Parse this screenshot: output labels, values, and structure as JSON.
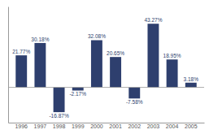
{
  "chart_data": {
    "type": "bar",
    "categories": [
      "1996",
      "1997",
      "1998",
      "1999",
      "2000",
      "2001",
      "2002",
      "2003",
      "2004",
      "2005"
    ],
    "values": [
      21.77,
      30.18,
      -16.87,
      -2.17,
      32.08,
      20.65,
      -7.58,
      43.27,
      18.95,
      3.18
    ],
    "value_labels": [
      "21.77%",
      "30.18%",
      "-16.87%",
      "-2.17%",
      "32.08%",
      "20.65%",
      "-7.58%",
      "43.27%",
      "18.95%",
      "3.18%"
    ],
    "color": "#2E3F6E",
    "ylim": [
      -24,
      55
    ],
    "data_labels": true,
    "tick_labels": "x",
    "grid": false
  }
}
